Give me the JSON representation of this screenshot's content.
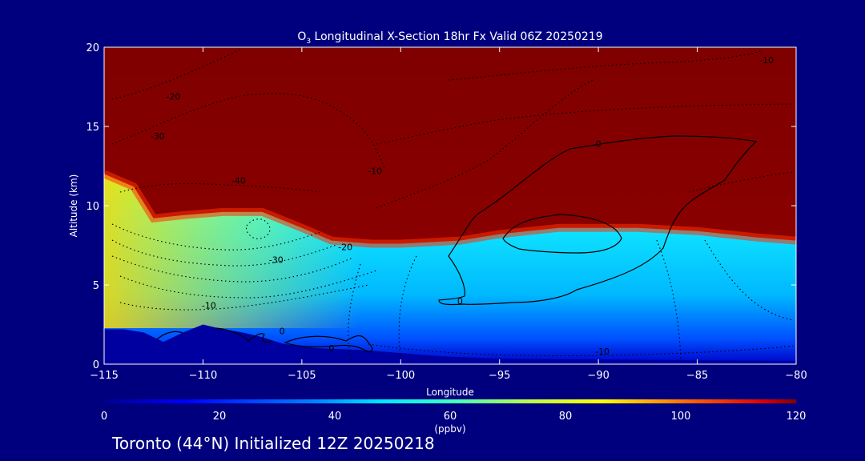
{
  "chart_data": {
    "type": "heatmap",
    "title_prefix": "O",
    "title_sub": "3",
    "title_rest": " Longitudinal X-Section 18hr  Fx Valid 06Z 20250219",
    "xlabel": "Longitude",
    "ylabel": "Altitude (km)",
    "xlim": [
      -115,
      -80
    ],
    "ylim": [
      0,
      20
    ],
    "x_ticks": [
      -115,
      -110,
      -105,
      -100,
      -95,
      -90,
      -85,
      -80
    ],
    "x_tick_labels": [
      "−115",
      "−110",
      "−105",
      "−100",
      "−95",
      "−90",
      "−85",
      "−80"
    ],
    "y_ticks": [
      0,
      5,
      10,
      15,
      20
    ],
    "y_tick_labels": [
      "0",
      "5",
      "10",
      "15",
      "20"
    ],
    "colorbar": {
      "label": "(ppbv)",
      "range": [
        0,
        120
      ],
      "ticks": [
        0,
        20,
        40,
        60,
        80,
        100,
        120
      ],
      "tick_labels": [
        "0",
        "20",
        "40",
        "60",
        "80",
        "100",
        "120"
      ]
    },
    "tropopause_height_km": [
      [
        -115,
        12.0
      ],
      [
        -113.5,
        11.2
      ],
      [
        -112.5,
        9.2
      ],
      [
        -111,
        9.4
      ],
      [
        -109,
        9.6
      ],
      [
        -107,
        9.6
      ],
      [
        -105,
        8.6
      ],
      [
        -103.5,
        7.8
      ],
      [
        -101.5,
        7.6
      ],
      [
        -100,
        7.6
      ],
      [
        -97,
        7.8
      ],
      [
        -95,
        8.2
      ],
      [
        -92,
        8.6
      ],
      [
        -88,
        8.6
      ],
      [
        -85,
        8.4
      ],
      [
        -82,
        8.0
      ],
      [
        -80,
        7.8
      ]
    ],
    "contour_labels": [
      {
        "value": "-10",
        "lon": -81.5,
        "alt": 19.0
      },
      {
        "value": "-20",
        "lon": -111.5,
        "alt": 16.7
      },
      {
        "value": "-30",
        "lon": -112.3,
        "alt": 14.2
      },
      {
        "value": "-40",
        "lon": -108.2,
        "alt": 11.4
      },
      {
        "value": "-10",
        "lon": -101.3,
        "alt": 12.0
      },
      {
        "value": "0",
        "lon": -90.0,
        "alt": 13.7
      },
      {
        "value": "-20",
        "lon": -102.8,
        "alt": 7.2
      },
      {
        "value": "-30",
        "lon": -106.3,
        "alt": 6.4
      },
      {
        "value": "-10",
        "lon": -109.7,
        "alt": 3.5
      },
      {
        "value": "0",
        "lon": -97.0,
        "alt": 3.8
      },
      {
        "value": "0",
        "lon": -106.0,
        "alt": 1.9
      },
      {
        "value": "0",
        "lon": -103.5,
        "alt": 0.8
      },
      {
        "value": "-10",
        "lon": -89.8,
        "alt": 0.6
      }
    ],
    "terrain_km": [
      [
        -115,
        2.2
      ],
      [
        -114,
        2.2
      ],
      [
        -113,
        2.0
      ],
      [
        -112,
        1.4
      ],
      [
        -111,
        2.0
      ],
      [
        -110,
        2.5
      ],
      [
        -109,
        2.2
      ],
      [
        -108,
        2.0
      ],
      [
        -107,
        1.7
      ],
      [
        -106,
        1.3
      ],
      [
        -105,
        1.1
      ],
      [
        -104,
        1.0
      ],
      [
        -102,
        0.9
      ],
      [
        -100,
        0.7
      ],
      [
        -98,
        0.5
      ],
      [
        -95,
        0.35
      ],
      [
        -90,
        0.3
      ],
      [
        -85,
        0.25
      ],
      [
        -80,
        0.2
      ]
    ]
  },
  "footer": {
    "caption": "Toronto (44°N) Initialized 12Z 20250218"
  }
}
